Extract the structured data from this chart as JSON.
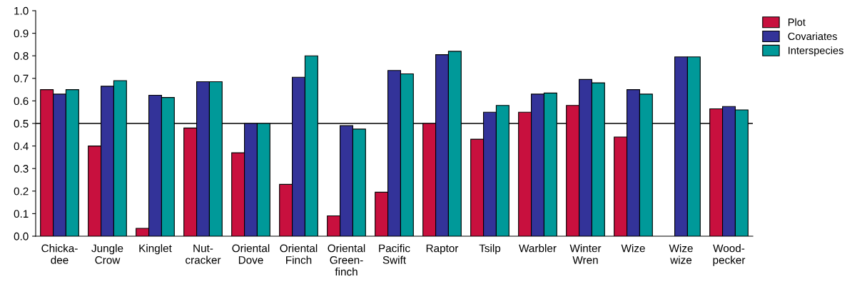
{
  "chart_data": {
    "type": "bar",
    "categories": [
      "Chicka-\ndee",
      "Jungle\nCrow",
      "Kinglet",
      "Nut-\ncracker",
      "Oriental\nDove",
      "Oriental\nFinch",
      "Oriental\nGreen-\nfinch",
      "Pacific\nSwift",
      "Raptor",
      "Tsilp",
      "Warbler",
      "Winter\nWren",
      "Wize",
      "Wize\nwize",
      "Wood-\npecker"
    ],
    "series": [
      {
        "name": "Plot",
        "color": "#c8103e",
        "values": [
          0.65,
          0.4,
          0.035,
          0.48,
          0.37,
          0.23,
          0.09,
          0.195,
          0.5,
          0.43,
          0.55,
          0.58,
          0.44,
          null,
          0.565
        ]
      },
      {
        "name": "Covariates",
        "color": "#333399",
        "values": [
          0.63,
          0.665,
          0.625,
          0.685,
          0.5,
          0.705,
          0.49,
          0.735,
          0.805,
          0.55,
          0.63,
          0.695,
          0.65,
          0.795,
          0.575
        ]
      },
      {
        "name": "Interspecies",
        "color": "#009999",
        "values": [
          0.65,
          0.69,
          0.615,
          0.685,
          0.5,
          0.8,
          0.475,
          0.72,
          0.82,
          0.58,
          0.635,
          0.68,
          0.63,
          0.795,
          0.56
        ]
      }
    ],
    "ylim": [
      0,
      1.0
    ],
    "yticks": [
      {
        "value": 0,
        "label": "0.0"
      },
      {
        "value": 0.1,
        "label": "0.1"
      },
      {
        "value": 0.2,
        "label": "0.2"
      },
      {
        "value": 0.3,
        "label": "0.3"
      },
      {
        "value": 0.4,
        "label": "0.4"
      },
      {
        "value": 0.5,
        "label": "0.5"
      },
      {
        "value": 0.6,
        "label": "0.6"
      },
      {
        "value": 0.7,
        "label": "0.7"
      },
      {
        "value": 0.8,
        "label": "0.8"
      },
      {
        "value": 0.9,
        "label": "0.9"
      },
      {
        "value": 1.0,
        "label": "1.0"
      }
    ],
    "ref_lines": [
      {
        "axis": "y",
        "value": 0.5,
        "color": "#000000"
      }
    ],
    "grid": false,
    "legend": "top right"
  }
}
